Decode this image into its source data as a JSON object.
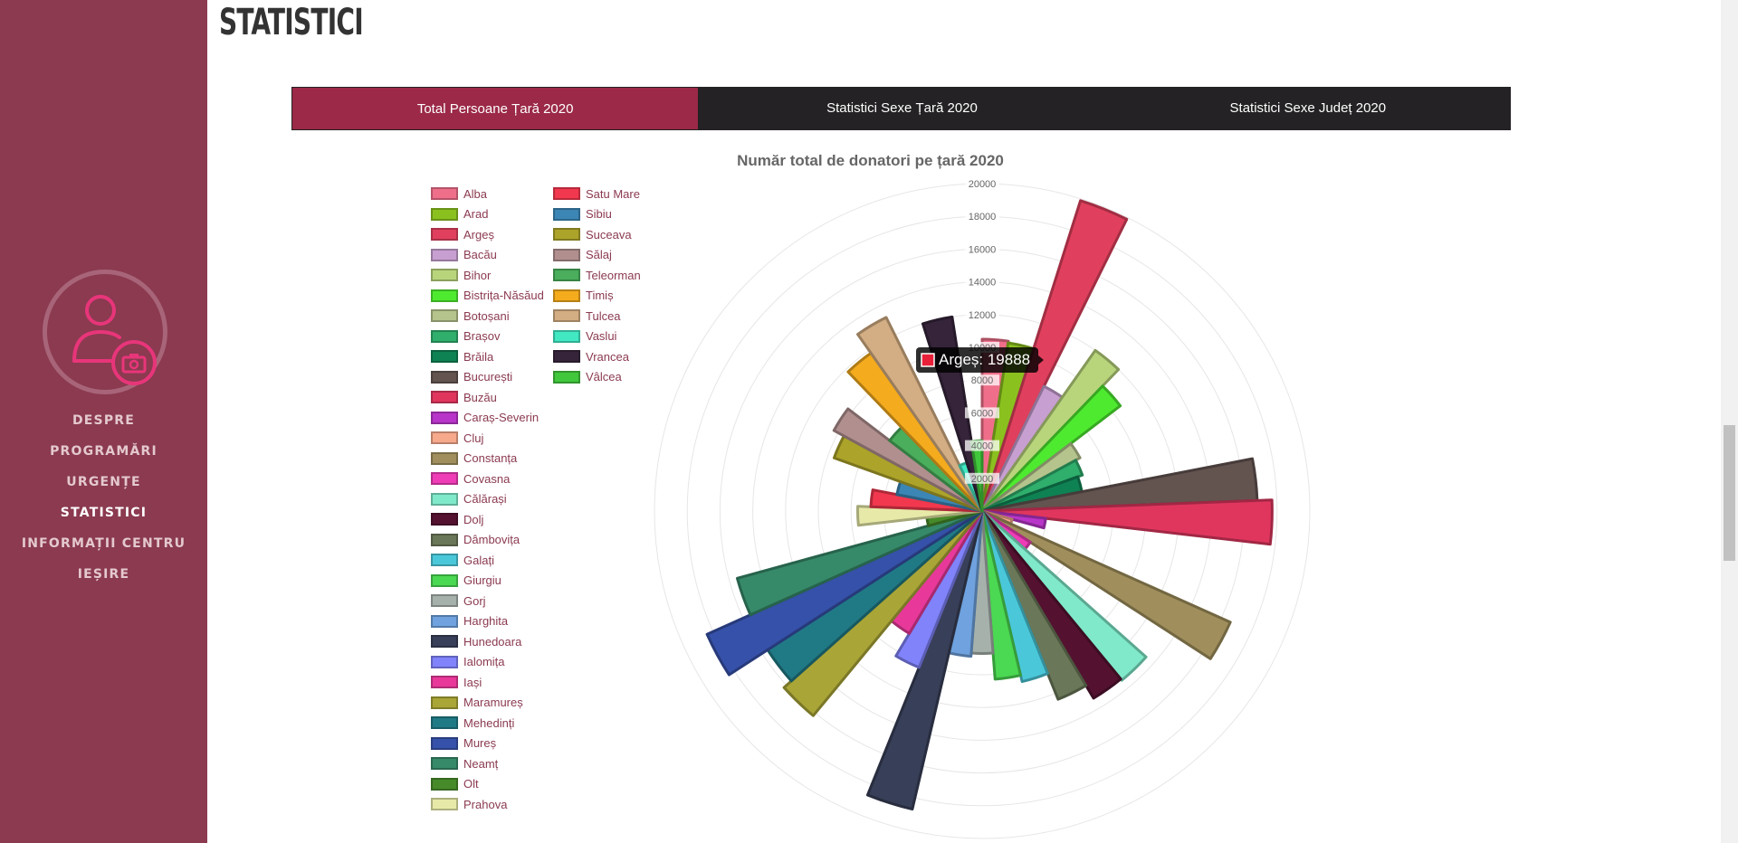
{
  "sidebar": {
    "avatar_icon": "user-camera-icon",
    "accent": "#e8357a",
    "items": [
      "DESPRE",
      "PROGRAMĂRI",
      "URGENȚE",
      "STATISTICI",
      "INFORMAȚII CENTRU",
      "IEȘIRE"
    ],
    "active": "STATISTICI"
  },
  "page": {
    "title": "STATISTICI"
  },
  "tabs": [
    "Total Persoane Țară 2020",
    "Statistici Sexe Țară 2020",
    "Statistici Sexe Județ 2020"
  ],
  "tooltip": {
    "label": "Argeș: 19888",
    "color": "#e8203a"
  },
  "chart_data": {
    "type": "polarArea",
    "title": "Număr total de donatori pe țară 2020",
    "r_ticks": [
      "2000",
      "4000",
      "6000",
      "8000",
      "10000",
      "12000",
      "14000",
      "16000",
      "18000",
      "20000"
    ],
    "r_max": 20000,
    "labels": [
      "Alba",
      "Arad",
      "Argeș",
      "Bacău",
      "Bihor",
      "Bistrița-Năsăud",
      "Botoșani",
      "Brașov",
      "Brăila",
      "București",
      "Buzău",
      "Caraș-Severin",
      "Cluj",
      "Constanța",
      "Covasna",
      "Călărași",
      "Dolj",
      "Dâmbovița",
      "Galați",
      "Giurgiu",
      "Gorj",
      "Harghita",
      "Hunedoara",
      "Ialomița",
      "Iași",
      "Maramureș",
      "Mehedinți",
      "Mureș",
      "Neamț",
      "Olt",
      "Prahova",
      "Satu Mare",
      "Sibiu",
      "Suceava",
      "Sălaj",
      "Teleorman",
      "Timiș",
      "Tulcea",
      "Vaslui",
      "Vrancea",
      "Vâlcea"
    ],
    "values": [
      10500,
      10400,
      19888,
      8500,
      12000,
      10600,
      6800,
      6500,
      6200,
      16800,
      17700,
      3900,
      1900,
      16600,
      3500,
      13400,
      13300,
      12400,
      10700,
      10300,
      8700,
      8900,
      18700,
      10300,
      8700,
      16200,
      15600,
      18400,
      15500,
      3400,
      7600,
      6800,
      5300,
      9600,
      10300,
      7100,
      11800,
      13200,
      3100,
      12000,
      4300
    ],
    "colors": [
      "#ef6f8a",
      "#8bc11f",
      "#e0405d",
      "#c79fd0",
      "#b9d57c",
      "#4eea30",
      "#b5c38c",
      "#2fae6c",
      "#0f8254",
      "#635450",
      "#e0365e",
      "#b835c9",
      "#f7a98c",
      "#a08f5c",
      "#ef3cb7",
      "#7fe9c9",
      "#541230",
      "#6a7758",
      "#4ac8d9",
      "#4bd852",
      "#a6b1ab",
      "#6fa2de",
      "#383f58",
      "#8083fa",
      "#e8399a",
      "#a9a537",
      "#207a86",
      "#3651a9",
      "#368a69",
      "#478a2a",
      "#e7e9a8",
      "#f2384e",
      "#3c86b5",
      "#aca32a",
      "#b18f8f",
      "#4aae5c",
      "#f4ab1d",
      "#d3ad83",
      "#41e8c2",
      "#35243a",
      "#41c73c"
    ]
  }
}
